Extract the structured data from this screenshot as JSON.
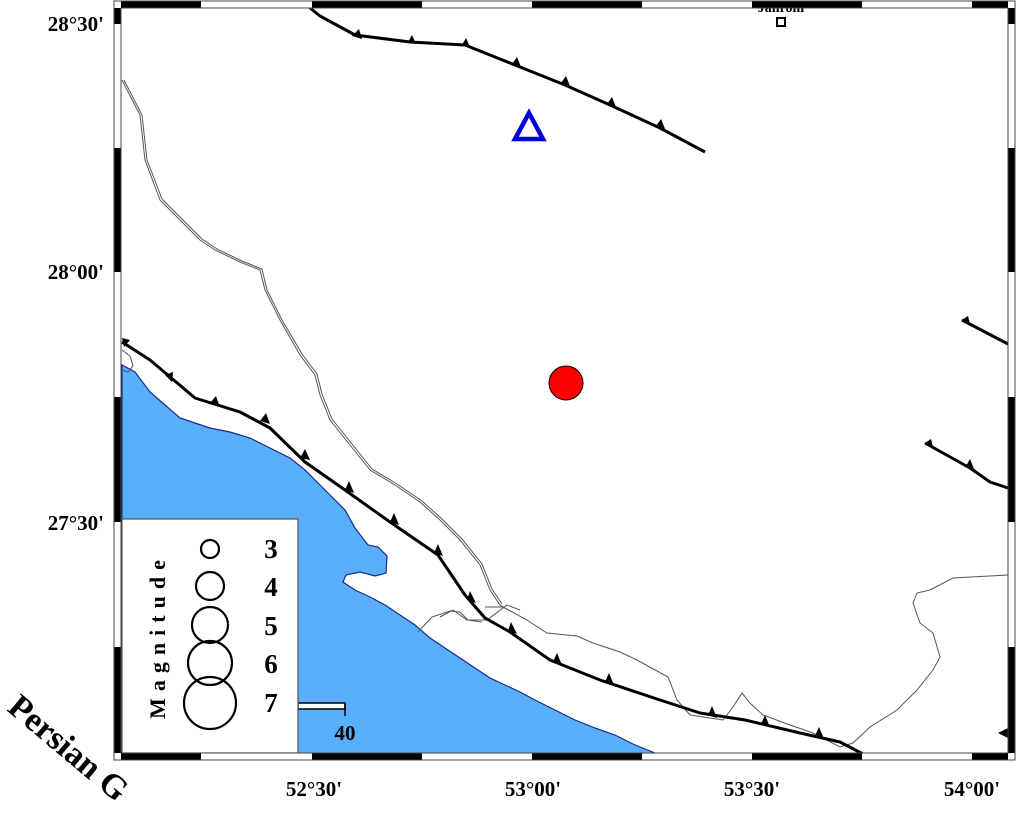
{
  "map": {
    "colors": {
      "sea": "#5aaffd",
      "coast": "#1a2a8a",
      "fault": "#000000",
      "border": "#555555",
      "epicenter": "#ff0000",
      "station": "#0000dd"
    },
    "lat_labels": [
      "28°30'",
      "28°00'",
      "27°30'"
    ],
    "lon_labels": [
      "52°30'",
      "53°00'",
      "53°30'",
      "54°00'"
    ],
    "city": {
      "name": "Jahrom",
      "icon": "square-city-marker"
    },
    "sea_label": "Persian G",
    "epicenter": {
      "icon": "red-circle-epicenter"
    },
    "station": {
      "icon": "blue-triangle-station"
    },
    "scale_bar": {
      "label": "40"
    }
  },
  "legend": {
    "title": "Magnitude",
    "items": [
      {
        "label": "3",
        "magnitude": 3
      },
      {
        "label": "4",
        "magnitude": 4
      },
      {
        "label": "5",
        "magnitude": 5
      },
      {
        "label": "6",
        "magnitude": 6
      },
      {
        "label": "7",
        "magnitude": 7
      }
    ]
  }
}
